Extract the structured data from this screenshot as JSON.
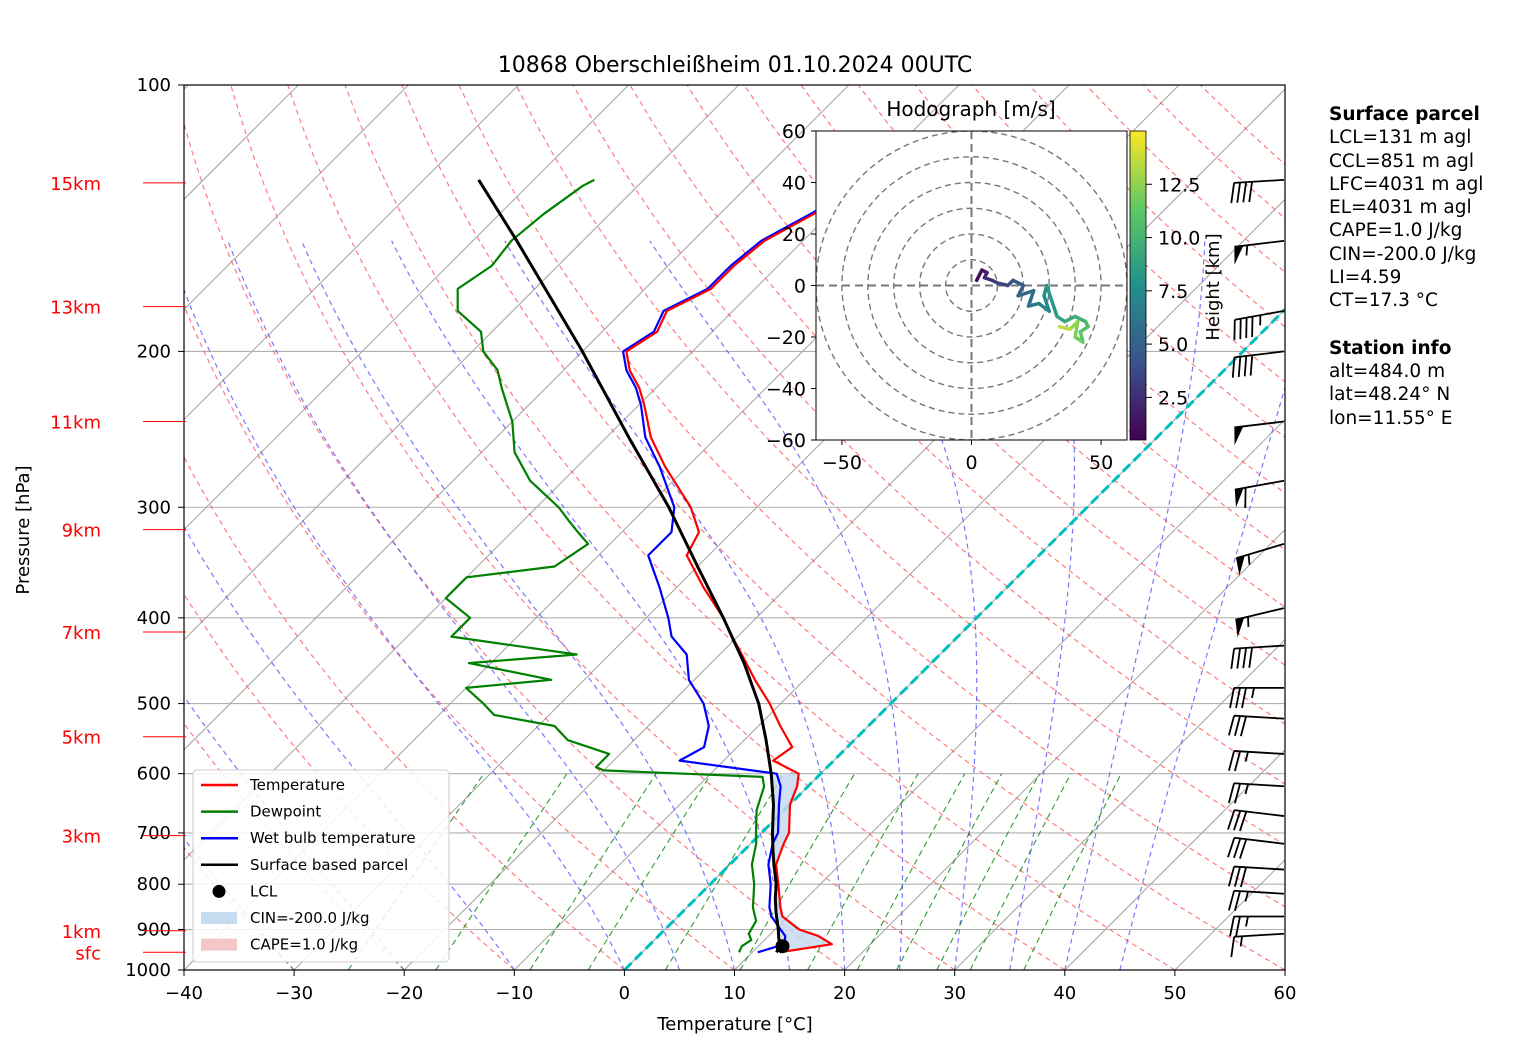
{
  "chart_data": {
    "type": "skew-t",
    "title": "10868 Oberschleißheim 01.10.2024 00UTC",
    "xlabel": "Temperature [°C]",
    "ylabel": "Pressure [hPa]",
    "xlim": [
      -40,
      60
    ],
    "ylim": [
      1000,
      100
    ],
    "x_ticks": [
      "−40",
      "−30",
      "−20",
      "−10",
      "0",
      "10",
      "20",
      "30",
      "40",
      "50",
      "60"
    ],
    "p_ticks": [
      {
        "p": 100,
        "label": "100"
      },
      {
        "p": 200,
        "label": "200"
      },
      {
        "p": 300,
        "label": "300"
      },
      {
        "p": 400,
        "label": "400"
      },
      {
        "p": 500,
        "label": "500"
      },
      {
        "p": 600,
        "label": "600"
      },
      {
        "p": 700,
        "label": "700"
      },
      {
        "p": 800,
        "label": "800"
      },
      {
        "p": 900,
        "label": "900"
      },
      {
        "p": 1000,
        "label": "1000"
      }
    ],
    "height_labels": [
      {
        "p": 955,
        "label": "sfc"
      },
      {
        "p": 903,
        "label": "1km"
      },
      {
        "p": 705,
        "label": "3km"
      },
      {
        "p": 545,
        "label": "5km"
      },
      {
        "p": 415,
        "label": "7km"
      },
      {
        "p": 318,
        "label": "9km"
      },
      {
        "p": 240,
        "label": "11km"
      },
      {
        "p": 178,
        "label": "13km"
      },
      {
        "p": 129,
        "label": "15km"
      }
    ],
    "series": [
      {
        "name": "Temperature",
        "color": "#ff0000",
        "p": [
          955,
          935,
          915,
          900,
          870,
          850,
          800,
          760,
          720,
          700,
          650,
          620,
          600,
          580,
          560,
          530,
          500,
          470,
          440,
          420,
          400,
          370,
          340,
          320,
          300,
          270,
          250,
          230,
          220,
          210,
          200,
          190,
          180,
          170,
          160,
          150,
          140,
          130,
          128
        ],
        "t": [
          12.5,
          16.5,
          14.5,
          12.2,
          9.5,
          8.5,
          6.2,
          4.2,
          3.0,
          2.5,
          0.0,
          -1.0,
          -2.0,
          -5.5,
          -5.0,
          -8.0,
          -11.0,
          -14.5,
          -18.0,
          -20.5,
          -23.0,
          -27.5,
          -32.0,
          -33.0,
          -36.0,
          -42.0,
          -46.0,
          -49.5,
          -51.5,
          -54.0,
          -56.0,
          -55.0,
          -56.0,
          -54.0,
          -54.0,
          -53.5,
          -51.5,
          -49.5,
          -48.0
        ]
      },
      {
        "name": "Dewpoint",
        "color": "#008000",
        "p": [
          955,
          940,
          925,
          910,
          880,
          850,
          800,
          760,
          720,
          700,
          660,
          620,
          605,
          595,
          590,
          570,
          550,
          530,
          515,
          500,
          480,
          470,
          450,
          440,
          420,
          400,
          380,
          360,
          350,
          330,
          320,
          310,
          300,
          280,
          260,
          240,
          220,
          210,
          200,
          190,
          180,
          170,
          160,
          150,
          140,
          130,
          128
        ],
        "t": [
          8.8,
          8.5,
          8.8,
          8.0,
          7.5,
          6.0,
          4.0,
          2.0,
          0.5,
          -0.5,
          -2.5,
          -4.0,
          -5.0,
          -20.0,
          -21.0,
          -21.0,
          -26.0,
          -28.5,
          -35.0,
          -37.0,
          -40.0,
          -33.0,
          -42.0,
          -33.0,
          -46.0,
          -46.0,
          -50.0,
          -50.0,
          -43.0,
          -42.0,
          -44.0,
          -46.0,
          -48.0,
          -53.0,
          -57.0,
          -60.0,
          -64.0,
          -66.0,
          -69.0,
          -71.0,
          -75.0,
          -77.0,
          -76.0,
          -76.5,
          -76.0,
          -75.0,
          -74.5
        ]
      },
      {
        "name": "Wet bulb temperature",
        "color": "#0000ff",
        "p": [
          955,
          935,
          915,
          900,
          870,
          850,
          800,
          760,
          720,
          700,
          650,
          620,
          600,
          580,
          560,
          530,
          500,
          470,
          440,
          420,
          400,
          370,
          340,
          320,
          300,
          270,
          250,
          230,
          220,
          210,
          200,
          190,
          180,
          170,
          160,
          150,
          140,
          130,
          128
        ],
        "t": [
          10.5,
          12.2,
          11.5,
          10.5,
          8.5,
          7.5,
          5.5,
          3.5,
          2.0,
          1.5,
          -1.0,
          -2.5,
          -4.0,
          -14.0,
          -13.0,
          -14.5,
          -17.0,
          -20.5,
          -23.0,
          -26.0,
          -28.0,
          -31.5,
          -35.5,
          -35.5,
          -37.5,
          -42.5,
          -46.5,
          -49.8,
          -51.8,
          -54.3,
          -56.3,
          -55.3,
          -56.3,
          -54.3,
          -54.3,
          -53.8,
          -51.8,
          -49.8,
          -48.3
        ]
      },
      {
        "name": "Surface based parcel",
        "color": "#000000",
        "p": [
          955,
          940,
          920,
          900,
          860,
          830,
          800,
          760,
          730,
          700,
          650,
          600,
          550,
          500,
          450,
          400,
          350,
          300,
          250,
          200,
          150,
          128
        ],
        "t": [
          12.2,
          12.0,
          11.1,
          10.3,
          8.5,
          7.2,
          6.0,
          4.0,
          2.5,
          1.0,
          -1.5,
          -4.5,
          -8.0,
          -12.0,
          -17.0,
          -23.0,
          -30.0,
          -38.0,
          -48.0,
          -60.0,
          -76.0,
          -85.0
        ]
      }
    ],
    "lcl": {
      "name": "LCL",
      "p": 940,
      "t": 12.2
    },
    "shading": [
      {
        "name": "CIN=-200.0 J/kg",
        "color": "#c6dbef"
      },
      {
        "name": "CAPE=1.0 J/kg",
        "color": "#f4c6c8"
      }
    ],
    "zero_isotherm_color": "#00bfbf",
    "wind_barbs": [
      {
        "p": 128,
        "speed_kt": 40,
        "dir": 260
      },
      {
        "p": 150,
        "speed_kt": 55,
        "dir": 255
      },
      {
        "p": 180,
        "speed_kt": 45,
        "dir": 250
      },
      {
        "p": 200,
        "speed_kt": 40,
        "dir": 255
      },
      {
        "p": 240,
        "speed_kt": 50,
        "dir": 255
      },
      {
        "p": 280,
        "speed_kt": 60,
        "dir": 250
      },
      {
        "p": 330,
        "speed_kt": 55,
        "dir": 240
      },
      {
        "p": 390,
        "speed_kt": 55,
        "dir": 245
      },
      {
        "p": 430,
        "speed_kt": 40,
        "dir": 260
      },
      {
        "p": 480,
        "speed_kt": 35,
        "dir": 265
      },
      {
        "p": 520,
        "speed_kt": 30,
        "dir": 270
      },
      {
        "p": 570,
        "speed_kt": 25,
        "dir": 270
      },
      {
        "p": 620,
        "speed_kt": 25,
        "dir": 270
      },
      {
        "p": 670,
        "speed_kt": 30,
        "dir": 275
      },
      {
        "p": 720,
        "speed_kt": 30,
        "dir": 275
      },
      {
        "p": 770,
        "speed_kt": 30,
        "dir": 270
      },
      {
        "p": 820,
        "speed_kt": 25,
        "dir": 270
      },
      {
        "p": 870,
        "speed_kt": 25,
        "dir": 265
      },
      {
        "p": 910,
        "speed_kt": 15,
        "dir": 260
      }
    ],
    "hodograph": {
      "title": "Hodograph [m/s]",
      "xlim": [
        -60,
        60
      ],
      "ylim": [
        -60,
        60
      ],
      "x_ticks": [
        "−50",
        "0",
        "50"
      ],
      "y_ticks": [
        "60",
        "40",
        "20",
        "0",
        "−20",
        "−40",
        "−60"
      ],
      "rings": [
        10,
        20,
        30,
        40,
        50,
        60
      ],
      "colorbar_label": "Height [km]",
      "colorbar_ticks": [
        "2.5",
        "5.0",
        "7.5",
        "10.0",
        "12.5"
      ],
      "u": [
        2,
        3,
        4,
        6,
        5,
        8,
        10,
        14,
        16,
        20,
        18,
        24,
        22,
        26,
        30,
        28,
        29,
        33,
        36,
        40,
        44,
        45,
        42,
        43,
        40,
        41,
        38,
        34
      ],
      "v": [
        2,
        4,
        6,
        5,
        3,
        2,
        1,
        0,
        2,
        0,
        -4,
        -2,
        -8,
        -7,
        -10,
        -4,
        0,
        -12,
        -14,
        -12,
        -14,
        -16,
        -18,
        -22,
        -20,
        -14,
        -17,
        -16
      ],
      "h_km": [
        0.5,
        0.8,
        1.0,
        1.5,
        2.0,
        2.5,
        3.0,
        3.5,
        4.0,
        4.5,
        5.0,
        5.5,
        6.0,
        6.5,
        7.0,
        7.5,
        8.0,
        8.5,
        9.0,
        9.5,
        10.0,
        10.5,
        11.0,
        11.5,
        12.0,
        12.5,
        13.5,
        14.5
      ]
    }
  },
  "info_panel": {
    "surface_title": "Surface parcel",
    "surface_lines": [
      "LCL=131 m agl",
      "CCL=851 m agl",
      "LFC=4031 m agl",
      "EL=4031 m agl",
      "CAPE=1.0 J/kg",
      "CIN=-200.0 J/kg",
      "LI=4.59",
      "CT=17.3 °C"
    ],
    "station_title": "Station info",
    "station_lines": [
      "alt=484.0 m",
      "lat=48.24° N",
      "lon=11.55° E"
    ]
  },
  "legend": [
    {
      "label": "Temperature",
      "kind": "line",
      "color": "#ff0000"
    },
    {
      "label": "Dewpoint",
      "kind": "line",
      "color": "#008000"
    },
    {
      "label": "Wet bulb temperature",
      "kind": "line",
      "color": "#0000ff"
    },
    {
      "label": "Surface based parcel",
      "kind": "line",
      "color": "#000000"
    },
    {
      "label": "LCL",
      "kind": "dot",
      "color": "#000000"
    },
    {
      "label": "CIN=-200.0 J/kg",
      "kind": "patch",
      "color": "#c6dbef"
    },
    {
      "label": "CAPE=1.0 J/kg",
      "kind": "patch",
      "color": "#f4c6c8"
    }
  ]
}
